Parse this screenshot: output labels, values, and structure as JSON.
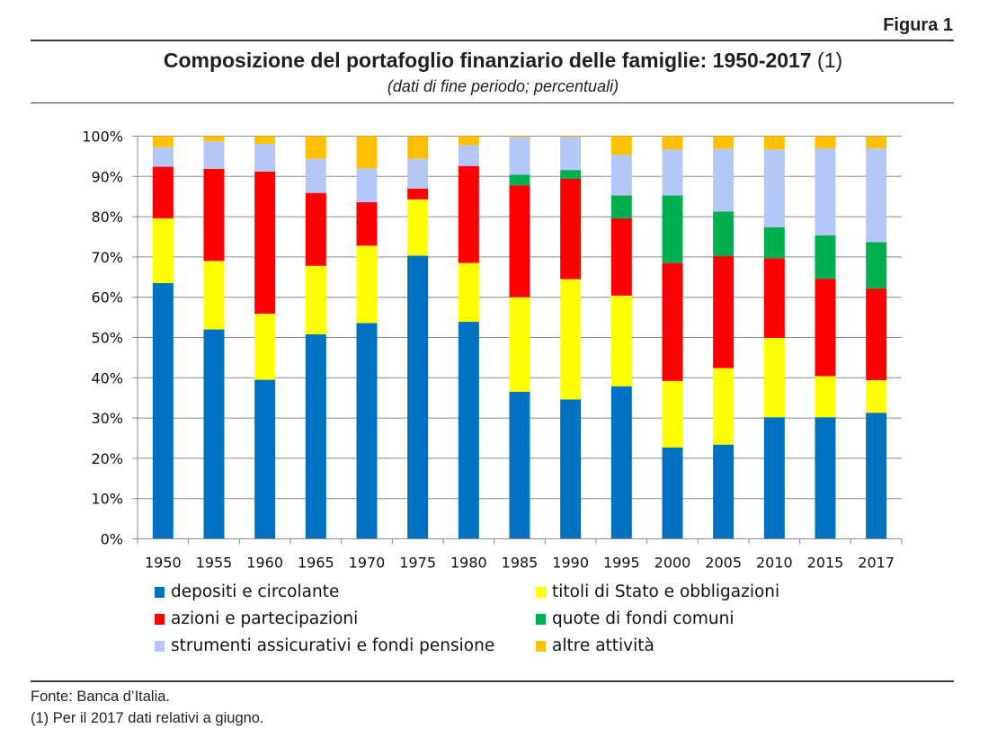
{
  "figure_label": "Figura 1",
  "title": "Composizione del portafoglio finanziario delle famiglie: 1950-2017",
  "title_note": "(1)",
  "subtitle": "(dati di fine periodo; percentuali)",
  "footer": {
    "source": "Fonte: Banca d’Italia.",
    "note": "(1) Per il 2017 dati relativi a giugno."
  },
  "chart_data": {
    "type": "bar",
    "stacked": "percent",
    "title": "Composizione del portafoglio finanziario delle famiglie: 1950-2017 (1)",
    "subtitle": "(dati di fine periodo; percentuali)",
    "xlabel": "",
    "ylabel": "",
    "ylim": [
      0,
      100
    ],
    "y_ticks": [
      "0%",
      "10%",
      "20%",
      "30%",
      "40%",
      "50%",
      "60%",
      "70%",
      "80%",
      "90%",
      "100%"
    ],
    "grid": true,
    "legend_position": "bottom",
    "categories": [
      "1950",
      "1955",
      "1960",
      "1965",
      "1970",
      "1975",
      "1980",
      "1985",
      "1990",
      "1995",
      "2000",
      "2005",
      "2010",
      "2015",
      "2017"
    ],
    "series": [
      {
        "name": "depositi e circolante",
        "color": "#0070c0",
        "values": [
          63.5,
          52.0,
          39.5,
          50.8,
          53.6,
          70.3,
          53.9,
          36.5,
          34.6,
          37.9,
          22.7,
          23.4,
          30.2,
          30.2,
          31.3
        ]
      },
      {
        "name": "titoli di Stato e obbligazioni",
        "color": "#ffff00",
        "values": [
          16.1,
          17.0,
          16.4,
          17.0,
          19.2,
          14.0,
          14.6,
          23.5,
          29.9,
          22.5,
          16.5,
          19.0,
          19.7,
          10.2,
          8.1
        ]
      },
      {
        "name": "azioni e partecipazioni",
        "color": "#ff0000",
        "values": [
          12.8,
          22.9,
          35.3,
          18.1,
          10.8,
          2.7,
          24.1,
          27.8,
          24.9,
          19.2,
          29.3,
          27.8,
          19.8,
          24.2,
          22.8
        ]
      },
      {
        "name": "quote di fondi comuni",
        "color": "#00b050",
        "values": [
          0,
          0,
          0,
          0,
          0,
          0,
          0,
          2.6,
          2.2,
          5.7,
          16.8,
          11.1,
          7.7,
          10.8,
          11.5
        ]
      },
      {
        "name": "strumenti assicurativi e fondi pensione",
        "color": "#b4c7f7",
        "values": [
          4.9,
          6.8,
          6.9,
          8.5,
          8.4,
          7.4,
          5.2,
          9.4,
          8.2,
          10.1,
          11.4,
          15.6,
          19.3,
          21.6,
          23.3
        ]
      },
      {
        "name": "altre attività",
        "color": "#ffc000",
        "values": [
          2.7,
          1.3,
          1.9,
          5.6,
          8.0,
          5.6,
          2.2,
          0.2,
          0.2,
          4.6,
          3.3,
          3.1,
          3.3,
          3.0,
          3.0
        ]
      }
    ]
  }
}
